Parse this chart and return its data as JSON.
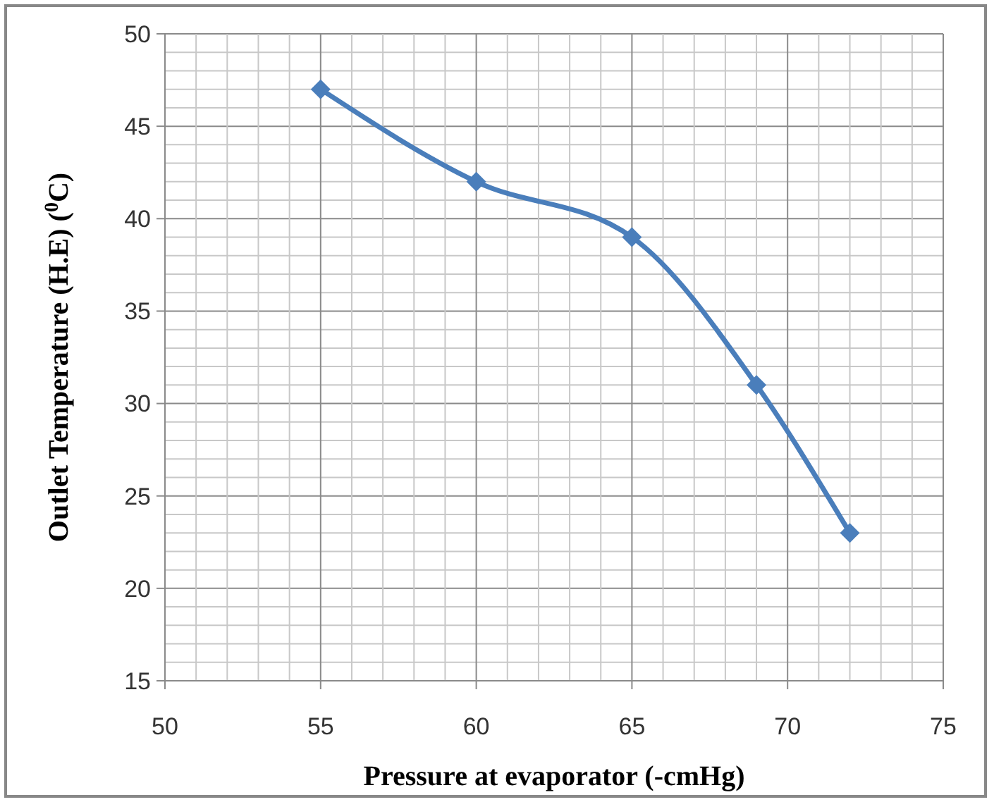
{
  "chart_data": {
    "type": "line",
    "xlabel": "Pressure at evaporator (-cmHg)",
    "ylabel": "Outlet Temperature (H.E)  ($^{0}$C)",
    "x": [
      55,
      60,
      65,
      69,
      72
    ],
    "series": [
      {
        "color": "#4a7ebb",
        "values": [
          47,
          42,
          39,
          31,
          23
        ]
      }
    ],
    "xlim": [
      50,
      75
    ],
    "xticks": [
      50,
      {
        "value": 51,
        "label": null
      },
      {
        "value": 52,
        "label": null
      },
      {
        "value": 53,
        "label": null
      },
      {
        "value": 54,
        "label": null
      },
      55,
      {
        "value": 56,
        "label": null
      },
      {
        "value": 57,
        "label": null
      },
      {
        "value": 58,
        "label": null
      },
      {
        "value": 59,
        "label": null
      },
      60,
      {
        "value": 61,
        "label": null
      },
      {
        "value": 62,
        "label": null
      },
      {
        "value": 63,
        "label": null
      },
      {
        "value": 64,
        "label": null
      },
      65,
      {
        "value": 66,
        "label": null
      },
      {
        "value": 67,
        "label": null
      },
      {
        "value": 68,
        "label": null
      },
      {
        "value": 69,
        "label": null
      },
      70,
      {
        "value": 71,
        "label": null
      },
      {
        "value": 72,
        "label": null
      },
      {
        "value": 73,
        "label": null
      },
      {
        "value": 74,
        "label": null
      },
      75
    ],
    "ylim": [
      15,
      50
    ],
    "yticks": [
      15,
      {
        "value": 16,
        "label": null
      },
      {
        "value": 17,
        "label": null
      },
      {
        "value": 18,
        "label": null
      },
      {
        "value": 19,
        "label": null
      },
      20,
      {
        "value": 21,
        "label": null
      },
      {
        "value": 22,
        "label": null
      },
      {
        "value": 23,
        "label": null
      },
      {
        "value": 24,
        "label": null
      },
      25,
      {
        "value": 26,
        "label": null
      },
      {
        "value": 27,
        "label": null
      },
      {
        "value": 28,
        "label": null
      },
      {
        "value": 29,
        "label": null
      },
      30,
      {
        "value": 31,
        "label": null
      },
      {
        "value": 32,
        "label": null
      },
      {
        "value": 33,
        "label": null
      },
      {
        "value": 34,
        "label": null
      },
      35,
      {
        "value": 36,
        "label": null
      },
      {
        "value": 37,
        "label": null
      },
      {
        "value": 38,
        "label": null
      },
      {
        "value": 39,
        "label": null
      },
      40,
      {
        "value": 41,
        "label": null
      },
      {
        "value": 42,
        "label": null
      },
      {
        "value": 43,
        "label": null
      },
      {
        "value": 44,
        "label": null
      },
      45,
      {
        "value": 46,
        "label": null
      },
      {
        "value": 47,
        "label": null
      },
      {
        "value": 48,
        "label": null
      },
      {
        "value": 49,
        "label": null
      },
      50
    ],
    "grid": true,
    "marker": "diamond",
    "line_style": "solid"
  }
}
